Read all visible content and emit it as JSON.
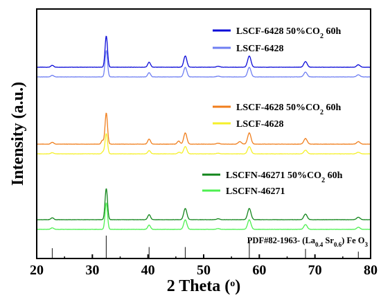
{
  "chart_data": {
    "type": "line",
    "xlabel": "2 Theta (",
    "xlabel_sup": "o",
    "xlabel_end": ")",
    "ylabel": "Intensity (a.u.)",
    "xlim": [
      20,
      80
    ],
    "xticks": [
      "20",
      "30",
      "40",
      "50",
      "60",
      "70",
      "80"
    ],
    "peaks": [
      {
        "pos": 22.8,
        "w": 0.25,
        "h": 0.06
      },
      {
        "pos": 32.5,
        "w": 0.22,
        "h": 1.0
      },
      {
        "pos": 40.2,
        "w": 0.25,
        "h": 0.16
      },
      {
        "pos": 46.7,
        "w": 0.28,
        "h": 0.36
      },
      {
        "pos": 52.6,
        "w": 0.3,
        "h": 0.03
      },
      {
        "pos": 58.2,
        "w": 0.3,
        "h": 0.36
      },
      {
        "pos": 68.3,
        "w": 0.3,
        "h": 0.18
      },
      {
        "pos": 77.8,
        "w": 0.3,
        "h": 0.08
      }
    ],
    "series": [
      {
        "name": "LSCF-6428 50%CO₂ 60h",
        "label_main": "LSCF-6428 50%CO",
        "label_sub": "2",
        "label_end": " 60h",
        "color": "#0a0ad8",
        "group": 0,
        "offset": 1,
        "scale": 1.0,
        "extra": []
      },
      {
        "name": "LSCF-6428",
        "label_main": "LSCF-6428",
        "color": "#6f7ff2",
        "group": 0,
        "offset": 0,
        "scale": 0.85,
        "extra": []
      },
      {
        "name": "LSCF-4628 50%CO₂ 60h",
        "label_main": "LSCF-4628 50%CO",
        "label_sub": "2",
        "label_end": " 60h",
        "color": "#f07e1c",
        "group": 1,
        "offset": 1,
        "scale": 1.0,
        "extra": [
          {
            "pos": 31.8,
            "w": 0.2,
            "h": 0.12
          },
          {
            "pos": 45.5,
            "w": 0.25,
            "h": 0.1
          },
          {
            "pos": 56.5,
            "w": 0.3,
            "h": 0.08
          }
        ]
      },
      {
        "name": "LSCF-4628",
        "label_main": "LSCF-4628",
        "color": "#f5f02a",
        "group": 1,
        "offset": 0,
        "scale": 0.65,
        "extra": [
          {
            "pos": 31.9,
            "w": 0.2,
            "h": 0.1
          },
          {
            "pos": 45.6,
            "w": 0.25,
            "h": 0.08
          }
        ]
      },
      {
        "name": "LSCFN-46271 50%CO₂ 60h",
        "label_main": "LSCFN-46271 50%CO",
        "label_sub": "2",
        "label_end": " 60h",
        "color": "#12851b",
        "group": 2,
        "offset": 1,
        "scale": 1.0,
        "extra": []
      },
      {
        "name": "LSCFN-46271",
        "label_main": "LSCFN-46271",
        "color": "#4df050",
        "group": 2,
        "offset": 0,
        "scale": 0.85,
        "extra": []
      }
    ],
    "reference": {
      "label_parts": [
        "PDF#82-1963- (La",
        "0.4",
        " Sr",
        "0.6",
        ") Fe O",
        "3"
      ],
      "lines": [
        {
          "pos": 22.8,
          "h": 0.45
        },
        {
          "pos": 32.5,
          "h": 1.0
        },
        {
          "pos": 40.2,
          "h": 0.5
        },
        {
          "pos": 46.7,
          "h": 0.5
        },
        {
          "pos": 58.2,
          "h": 0.78
        },
        {
          "pos": 68.3,
          "h": 0.42
        },
        {
          "pos": 77.8,
          "h": 0.3
        }
      ]
    }
  }
}
